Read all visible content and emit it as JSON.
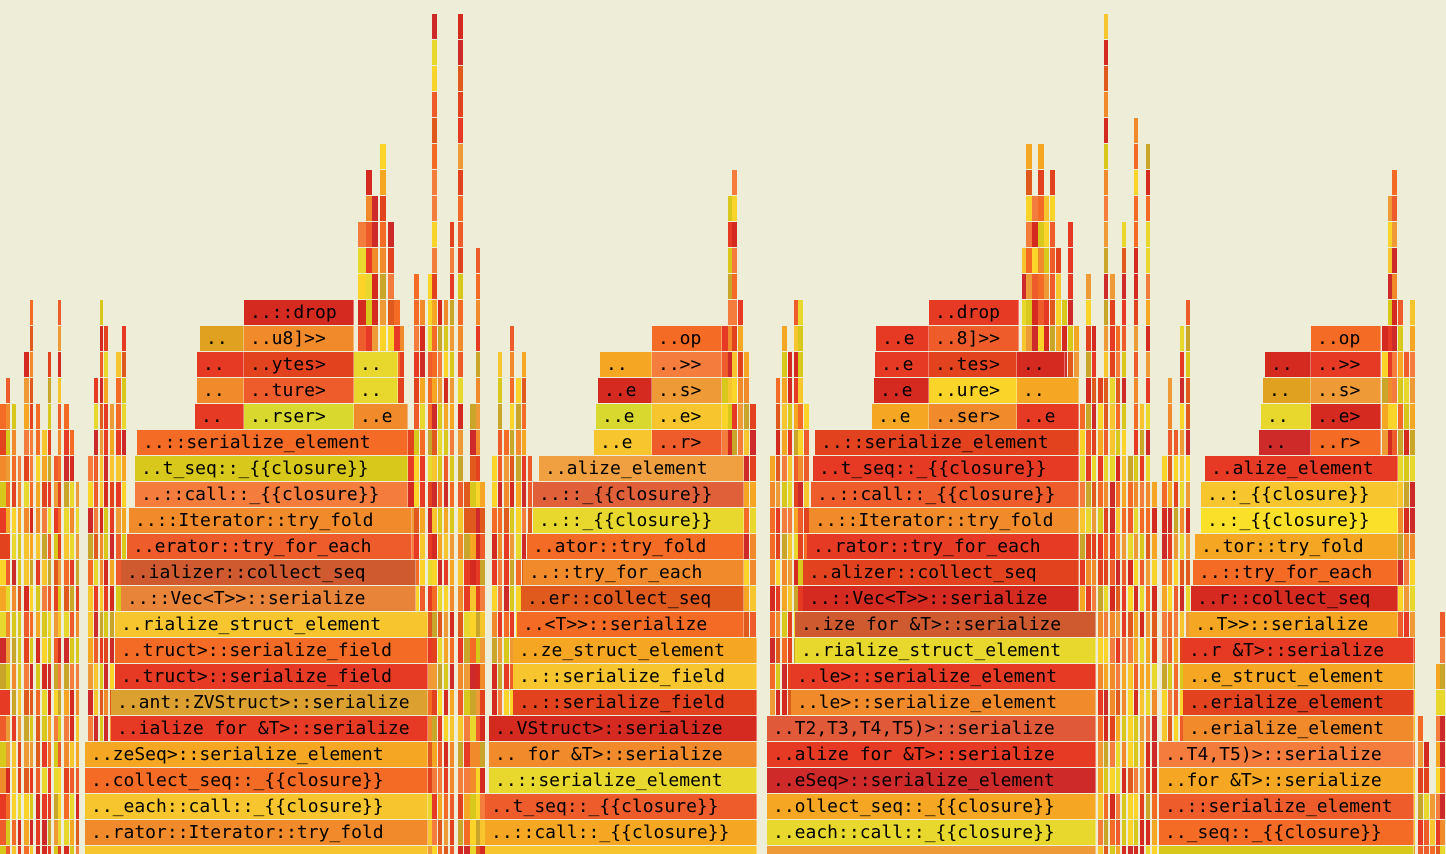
{
  "palette": [
    "#d42a1f",
    "#e63a24",
    "#f36b24",
    "#f08a2a",
    "#f5a623",
    "#f7c52d",
    "#e8d82e",
    "#d8c81c",
    "#ee5c2c",
    "#cf2a2a",
    "#e3421f",
    "#f47c3c",
    "#fbd42a",
    "#e05a1e",
    "#c9a62a",
    "#ee9a36"
  ],
  "frames": [
    {
      "label": "..::drop",
      "color": "#d42a1f"
    },
    {
      "label": "..",
      "color": "#e0a020"
    },
    {
      "label": "..u8]>>",
      "color": "#f08a2a"
    },
    {
      "label": "..",
      "color": "#e63a24"
    },
    {
      "label": "..ytes>",
      "color": "#e3421f"
    },
    {
      "label": "..",
      "color": "#e8d82e"
    },
    {
      "label": "..",
      "color": "#f08a2a"
    },
    {
      "label": "..ture>",
      "color": "#ee5c2c"
    },
    {
      "label": "..",
      "color": "#e8d82e"
    },
    {
      "label": "..",
      "color": "#e63a24"
    },
    {
      "label": "..rser>",
      "color": "#d8d82e"
    },
    {
      "label": "..e",
      "color": "#f08a2a"
    },
    {
      "label": "..::serialize_element",
      "color": "#f36b24"
    },
    {
      "label": "..t_seq::_{{closure}}",
      "color": "#d8c81c"
    },
    {
      "label": "..::call::_{{closure}}",
      "color": "#f47c3c"
    },
    {
      "label": "..::Iterator::try_fold",
      "color": "#f08a2a"
    },
    {
      "label": "..erator::try_for_each",
      "color": "#ee5c2c"
    },
    {
      "label": "..ializer::collect_seq",
      "color": "#cf5a30"
    },
    {
      "label": "..::Vec<T>>::serialize",
      "color": "#e8843a"
    },
    {
      "label": "..rialize_struct_element",
      "color": "#f7c52d"
    },
    {
      "label": "..truct>::serialize_field",
      "color": "#f36b24"
    },
    {
      "label": "..truct>::serialize_field",
      "color": "#e63a24"
    },
    {
      "label": "..ant::ZVStruct>::serialize",
      "color": "#dca030"
    },
    {
      "label": "..ialize for &T>::serialize",
      "color": "#e63a24"
    },
    {
      "label": "..zeSeq>::serialize_element",
      "color": "#f5a623"
    },
    {
      "label": "..collect_seq::_{{closure}}",
      "color": "#f36b24"
    },
    {
      "label": ".._each::call::_{{closure}}",
      "color": "#f7c52d"
    },
    {
      "label": "..rator::Iterator::try_fold",
      "color": "#f08a2a"
    },
    {
      "label": "..op",
      "color": "#f36b24"
    },
    {
      "label": "..",
      "color": "#f5a623"
    },
    {
      "label": "..>>",
      "color": "#f47c3c"
    },
    {
      "label": "..e",
      "color": "#d42a1f"
    },
    {
      "label": "..s>",
      "color": "#ee9a36"
    },
    {
      "label": "..e",
      "color": "#d8d82e"
    },
    {
      "label": "..e>",
      "color": "#f7c52d"
    },
    {
      "label": "..e",
      "color": "#f7c52d"
    },
    {
      "label": "..r>",
      "color": "#ee5c2c"
    },
    {
      "label": "..alize_element",
      "color": "#f0a040"
    },
    {
      "label": "..::_{{closure}}",
      "color": "#e0603a"
    },
    {
      "label": "..::_{{closure}}",
      "color": "#e8d82e"
    },
    {
      "label": "..ator::try_fold",
      "color": "#f36b24"
    },
    {
      "label": "..::try_for_each",
      "color": "#f08a2a"
    },
    {
      "label": "..er::collect_seq",
      "color": "#e05a1e"
    },
    {
      "label": "..<T>>::serialize",
      "color": "#f36b24"
    },
    {
      "label": "..ze_struct_element",
      "color": "#f5a623"
    },
    {
      "label": "..::serialize_field",
      "color": "#f7c52d"
    },
    {
      "label": "..::serialize_field",
      "color": "#e3421f"
    },
    {
      "label": "..VStruct>::serialize",
      "color": "#d42a1f"
    },
    {
      "label": ".. for &T>::serialize",
      "color": "#f08a2a"
    },
    {
      "label": "..::serialize_element",
      "color": "#e8d82e"
    },
    {
      "label": "..t_seq::_{{closure}}",
      "color": "#ee5c2c"
    },
    {
      "label": "..::call::_{{closure}}",
      "color": "#f5a623"
    },
    {
      "label": "..e",
      "color": "#e3421f"
    },
    {
      "label": "..drop",
      "color": "#e63a24"
    },
    {
      "label": "..e",
      "color": "#e63a24"
    },
    {
      "label": "..8]>>",
      "color": "#ee5c2c"
    },
    {
      "label": "..e",
      "color": "#e63a24"
    },
    {
      "label": "..tes>",
      "color": "#e3421f"
    },
    {
      "label": "..",
      "color": "#d42a1f"
    },
    {
      "label": "..e",
      "color": "#d42a1f"
    },
    {
      "label": "..ure>",
      "color": "#fbd42a"
    },
    {
      "label": "..",
      "color": "#f5a623"
    },
    {
      "label": "..e",
      "color": "#f5a623"
    },
    {
      "label": "..ser>",
      "color": "#f08a2a"
    },
    {
      "label": "..e",
      "color": "#e63a24"
    },
    {
      "label": "..::serialize_element",
      "color": "#e3421f"
    },
    {
      "label": "..t_seq::_{{closure}}",
      "color": "#e63a24"
    },
    {
      "label": "..::call::_{{closure}}",
      "color": "#ee5c2c"
    },
    {
      "label": "..::Iterator::try_fold",
      "color": "#f08a2a"
    },
    {
      "label": "..rator::try_for_each",
      "color": "#e63a24"
    },
    {
      "label": "..alizer::collect_seq",
      "color": "#e3421f"
    },
    {
      "label": "..::Vec<T>>::serialize",
      "color": "#d42a1f"
    },
    {
      "label": "..ize for &T>::serialize",
      "color": "#cf5a30"
    },
    {
      "label": "..rialize_struct_element",
      "color": "#e8d82e"
    },
    {
      "label": "..le>::serialize_element",
      "color": "#e63a24"
    },
    {
      "label": "..le>::serialize_element",
      "color": "#f08a2a"
    },
    {
      "label": "..T2,T3,T4,T5)>::serialize",
      "color": "#e05a3a"
    },
    {
      "label": "..alize for &T>::serialize",
      "color": "#e63a24"
    },
    {
      "label": "..eSeq>::serialize_element",
      "color": "#cf2a2a"
    },
    {
      "label": "..ollect_seq::_{{closure}}",
      "color": "#f5a623"
    },
    {
      "label": "..each::call::_{{closure}}",
      "color": "#e8d82e"
    },
    {
      "label": "..op",
      "color": "#f36b24"
    },
    {
      "label": "..",
      "color": "#d42a1f"
    },
    {
      "label": "..>>",
      "color": "#e63a24"
    },
    {
      "label": "..",
      "color": "#e0a020"
    },
    {
      "label": "..s>",
      "color": "#ee9a36"
    },
    {
      "label": "..",
      "color": "#e8d82e"
    },
    {
      "label": "..e>",
      "color": "#d42a1f"
    },
    {
      "label": "..",
      "color": "#cf2a2a"
    },
    {
      "label": "..r>",
      "color": "#f36b24"
    },
    {
      "label": "..alize_element",
      "color": "#e63a24"
    },
    {
      "label": "..:_{{closure}}",
      "color": "#f7c52d"
    },
    {
      "label": "..:_{{closure}}",
      "color": "#fbe02a"
    },
    {
      "label": "..tor::try_fold",
      "color": "#f5a623"
    },
    {
      "label": "..::try_for_each",
      "color": "#f36b24"
    },
    {
      "label": "..r::collect_seq",
      "color": "#d42a1f"
    },
    {
      "label": "..T>>::serialize",
      "color": "#f5a623"
    },
    {
      "label": "..r &T>::serialize",
      "color": "#e63a24"
    },
    {
      "label": "..e_struct_element",
      "color": "#f5a623"
    },
    {
      "label": "..erialize_element",
      "color": "#e3421f"
    },
    {
      "label": "..erialize_element",
      "color": "#f08a2a"
    },
    {
      "label": "..T4,T5)>::serialize",
      "color": "#f47c3c"
    },
    {
      "label": "..for &T>::serialize",
      "color": "#f5a623"
    },
    {
      "label": "..::serialize_element",
      "color": "#ee5c2c"
    },
    {
      "label": ".._seq::_{{closure}}",
      "color": "#f36b24"
    }
  ]
}
